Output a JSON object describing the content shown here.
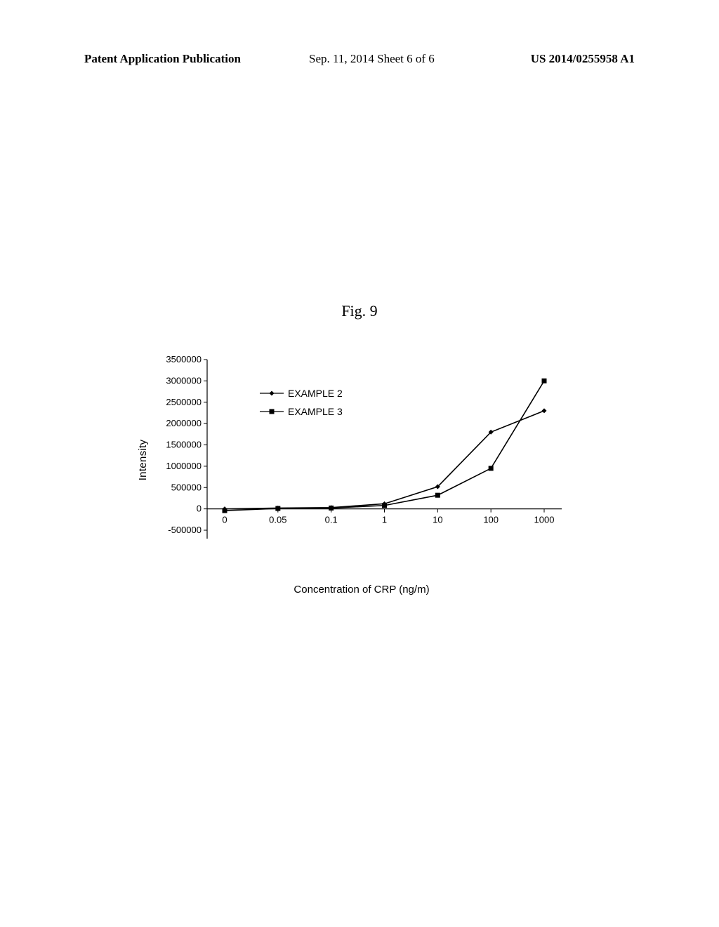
{
  "header": {
    "left": "Patent Application Publication",
    "center": "Sep. 11, 2014  Sheet 6 of 6",
    "right": "US 2014/0255958 A1"
  },
  "figure_label": "Fig. 9",
  "chart": {
    "type": "line",
    "background_color": "#ffffff",
    "axis_color": "#000000",
    "line_color": "#000000",
    "marker_size": 7,
    "line_width": 1.6,
    "font_family": "Arial",
    "label_fontsize": 15,
    "tick_fontsize": 13,
    "xlabel": "Concentration of CRP (ng/m)",
    "ylabel": "Intensity",
    "ylim": [
      -500000,
      3500000
    ],
    "ytick_step": 500000,
    "yticks": [
      -500000,
      0,
      500000,
      1000000,
      1500000,
      2000000,
      2500000,
      3000000,
      3500000
    ],
    "x_categories": [
      "0",
      "0.05",
      "0.1",
      "1",
      "10",
      "100",
      "1000"
    ],
    "legend": {
      "position": "inside-upper-left",
      "items": [
        {
          "label": "EXAMPLE 2",
          "marker": "diamond"
        },
        {
          "label": "EXAMPLE 3",
          "marker": "square"
        }
      ]
    },
    "series": [
      {
        "name": "EXAMPLE 2",
        "marker": "diamond",
        "x": [
          "0",
          "0.05",
          "0.1",
          "1",
          "10",
          "100",
          "1000"
        ],
        "y": [
          0,
          20000,
          30000,
          120000,
          520000,
          1800000,
          2300000
        ]
      },
      {
        "name": "EXAMPLE 3",
        "marker": "square",
        "x": [
          "0",
          "0.05",
          "0.1",
          "1",
          "10",
          "100",
          "1000"
        ],
        "y": [
          -40000,
          10000,
          20000,
          80000,
          320000,
          950000,
          3000000
        ]
      }
    ]
  }
}
